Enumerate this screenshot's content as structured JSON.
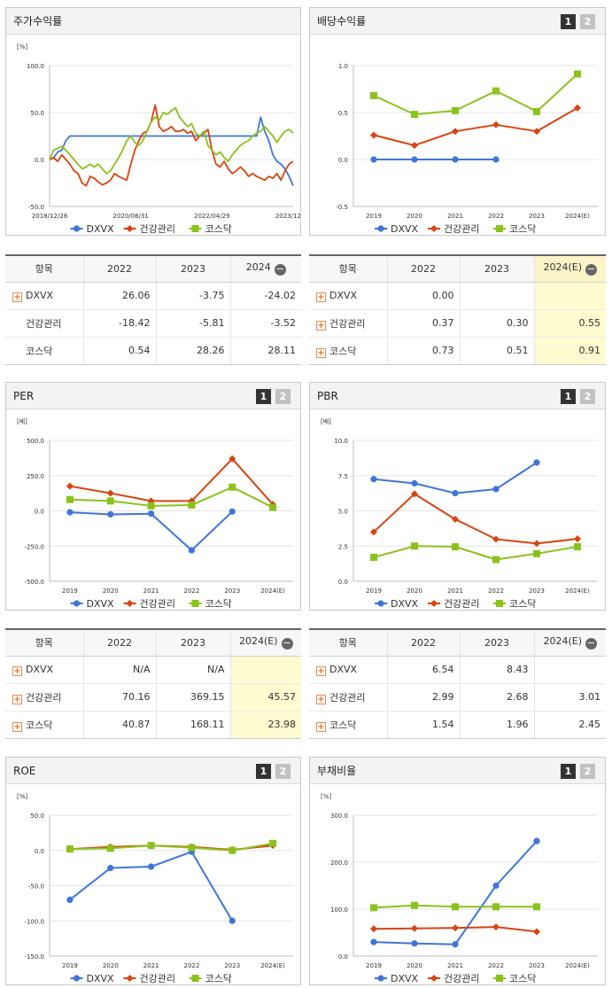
{
  "colors": {
    "DXVX": "#3f75d9",
    "건강관리": "#d9430f",
    "코스닥": "#8bc21b"
  },
  "charts": [
    {
      "id": "stock",
      "title": "주가수익률",
      "pages": [],
      "chart_data": {
        "type": "line",
        "unit": "[%]",
        "yticks": [
          "100.0",
          "50.0",
          "0.0",
          "-50.0"
        ],
        "ylim": [
          -50,
          100
        ],
        "xlim": [
          0,
          60
        ],
        "xticks": [
          {
            "x": 0,
            "label": "2018/12/28"
          },
          {
            "x": 20,
            "label": "2020/08/31"
          },
          {
            "x": 40,
            "label": "2022/04/29"
          },
          {
            "x": 60,
            "label": "2023/12/28"
          }
        ],
        "series": [
          {
            "name": "DXVX",
            "values": [
              0,
              2,
              8,
              10,
              20,
              25,
              25,
              25,
              25,
              25,
              25,
              25,
              25,
              25,
              25,
              25,
              25,
              25,
              25,
              25,
              25,
              25,
              25,
              25,
              25,
              25,
              25,
              25,
              25,
              25,
              25,
              25,
              25,
              25,
              25,
              25,
              25,
              25,
              25,
              25,
              25,
              25,
              25,
              25,
              25,
              25,
              25,
              25,
              25,
              25,
              25,
              25,
              45,
              30,
              20,
              5,
              -2,
              -5,
              -10,
              -18,
              -28
            ]
          },
          {
            "name": "건강관리",
            "values": [
              0,
              2,
              -2,
              5,
              0,
              -5,
              -12,
              -15,
              -25,
              -28,
              -18,
              -20,
              -24,
              -27,
              -25,
              -22,
              -15,
              -18,
              -20,
              -22,
              -5,
              10,
              20,
              28,
              30,
              40,
              58,
              35,
              30,
              32,
              35,
              30,
              30,
              32,
              28,
              30,
              20,
              25,
              28,
              32,
              10,
              -5,
              -8,
              -2,
              -10,
              -15,
              -12,
              -8,
              -12,
              -18,
              -15,
              -18,
              -20,
              -22,
              -18,
              -20,
              -15,
              -22,
              -12,
              -5,
              -2
            ]
          },
          {
            "name": "코스닥",
            "values": [
              0,
              10,
              12,
              14,
              10,
              5,
              0,
              -5,
              -10,
              -8,
              -5,
              -8,
              -5,
              -10,
              -15,
              -12,
              -5,
              2,
              10,
              20,
              25,
              18,
              15,
              20,
              30,
              40,
              45,
              42,
              50,
              48,
              52,
              55,
              45,
              40,
              35,
              38,
              28,
              25,
              30,
              15,
              10,
              5,
              8,
              2,
              -2,
              5,
              10,
              15,
              18,
              20,
              25,
              28,
              30,
              35,
              30,
              25,
              18,
              25,
              30,
              32,
              28
            ]
          }
        ],
        "legend": "bottom"
      }
    },
    {
      "id": "dividend",
      "title": "배당수익률",
      "pages": [
        "1",
        "2"
      ],
      "chart_data": {
        "type": "line",
        "unit": "",
        "yticks": [
          "1.0",
          "0.5",
          "0.0",
          "-0.5"
        ],
        "ylim": [
          -0.5,
          1.0
        ],
        "categories": [
          "2019",
          "2020",
          "2021",
          "2022",
          "2023",
          "2024(E)"
        ],
        "series": [
          {
            "name": "DXVX",
            "values": [
              0.0,
              0.0,
              0.0,
              0.0,
              null,
              null
            ]
          },
          {
            "name": "건강관리",
            "values": [
              0.26,
              0.15,
              0.3,
              0.37,
              0.3,
              0.55
            ]
          },
          {
            "name": "코스닥",
            "values": [
              0.68,
              0.48,
              0.52,
              0.73,
              0.51,
              0.91
            ]
          }
        ],
        "legend": "bottom"
      }
    },
    {
      "id": "per",
      "title": "PER",
      "pages": [
        "1",
        "2"
      ],
      "chart_data": {
        "type": "line",
        "unit": "[배]",
        "yticks": [
          "500.0",
          "250.0",
          "0.0",
          "-250.0",
          "-500.0"
        ],
        "ylim": [
          -500,
          500
        ],
        "categories": [
          "2019",
          "2020",
          "2021",
          "2022",
          "2023",
          "2024(E)"
        ],
        "series": [
          {
            "name": "DXVX",
            "values": [
              -10,
              -25,
              -20,
              -280,
              -5,
              null
            ]
          },
          {
            "name": "건강관리",
            "values": [
              175,
              125,
              70,
              70,
              369.15,
              45.57
            ]
          },
          {
            "name": "코스닥",
            "values": [
              80,
              70,
              35,
              40.87,
              168.11,
              23.98
            ]
          }
        ],
        "legend": "bottom"
      }
    },
    {
      "id": "pbr",
      "title": "PBR",
      "pages": [
        "1",
        "2"
      ],
      "chart_data": {
        "type": "line",
        "unit": "[배]",
        "yticks": [
          "10.0",
          "7.5",
          "5.0",
          "2.5",
          "0.0"
        ],
        "ylim": [
          0,
          10
        ],
        "categories": [
          "2019",
          "2020",
          "2021",
          "2022",
          "2023",
          "2024(E)"
        ],
        "series": [
          {
            "name": "DXVX",
            "values": [
              7.25,
              6.95,
              6.25,
              6.54,
              8.43,
              null
            ]
          },
          {
            "name": "건강관리",
            "values": [
              3.5,
              6.2,
              4.4,
              2.99,
              2.68,
              3.01
            ]
          },
          {
            "name": "코스닥",
            "values": [
              1.7,
              2.5,
              2.45,
              1.54,
              1.96,
              2.45
            ]
          }
        ],
        "legend": "bottom"
      }
    },
    {
      "id": "roe",
      "title": "ROE",
      "pages": [
        "1",
        "2"
      ],
      "chart_data": {
        "type": "line",
        "unit": "[%]",
        "yticks": [
          "50.0",
          "0.0",
          "-50.0",
          "-100.0",
          "-150.0"
        ],
        "ylim": [
          -150,
          50
        ],
        "categories": [
          "2019",
          "2020",
          "2021",
          "2022",
          "2023",
          "2024(E)"
        ],
        "series": [
          {
            "name": "DXVX",
            "values": [
              -70,
              -25,
              -23,
              -2,
              -100,
              null
            ]
          },
          {
            "name": "건강관리",
            "values": [
              2,
              5,
              7,
              5,
              1,
              7
            ]
          },
          {
            "name": "코스닥",
            "values": [
              2,
              3,
              7,
              4,
              0,
              10
            ]
          }
        ],
        "legend": "bottom"
      }
    },
    {
      "id": "debt",
      "title": "부채비율",
      "pages": [
        "1",
        "2"
      ],
      "chart_data": {
        "type": "line",
        "unit": "[%]",
        "yticks": [
          "300.0",
          "200.0",
          "100.0",
          "0.0"
        ],
        "ylim": [
          0,
          300
        ],
        "categories": [
          "2019",
          "2020",
          "2021",
          "2022",
          "2023",
          "2024(E)"
        ],
        "series": [
          {
            "name": "DXVX",
            "values": [
              30,
              27,
              25,
              150,
              245,
              null
            ]
          },
          {
            "name": "건강관리",
            "values": [
              58,
              59,
              60,
              62,
              52,
              null
            ]
          },
          {
            "name": "코스닥",
            "values": [
              103,
              108,
              105,
              105,
              105,
              null
            ]
          }
        ],
        "legend": "bottom"
      }
    }
  ],
  "tables": {
    "stock": {
      "headers": [
        "항목",
        "2022",
        "2023",
        "2024"
      ],
      "rows": [
        {
          "name": "DXVX",
          "plus": true,
          "values": [
            "26.06",
            "-3.75",
            "-24.02"
          ]
        },
        {
          "name": "건강관리",
          "plus": false,
          "values": [
            "-18.42",
            "-5.81",
            "-3.52"
          ]
        },
        {
          "name": "코스닥",
          "plus": false,
          "values": [
            "0.54",
            "28.26",
            "28.11"
          ]
        }
      ]
    },
    "dividend": {
      "headers": [
        "항목",
        "2022",
        "2023",
        "2024(E)"
      ],
      "rows": [
        {
          "name": "DXVX",
          "plus": true,
          "values": [
            "0.00",
            "",
            ""
          ]
        },
        {
          "name": "건강관리",
          "plus": true,
          "values": [
            "0.37",
            "0.30",
            "0.55"
          ]
        },
        {
          "name": "코스닥",
          "plus": true,
          "values": [
            "0.73",
            "0.51",
            "0.91"
          ]
        }
      ]
    },
    "per": {
      "headers": [
        "항목",
        "2022",
        "2023",
        "2024(E)"
      ],
      "rows": [
        {
          "name": "DXVX",
          "plus": true,
          "values": [
            "N/A",
            "N/A",
            ""
          ]
        },
        {
          "name": "건강관리",
          "plus": true,
          "values": [
            "70.16",
            "369.15",
            "45.57"
          ]
        },
        {
          "name": "코스닥",
          "plus": true,
          "values": [
            "40.87",
            "168.11",
            "23.98"
          ]
        }
      ]
    },
    "pbr": {
      "headers": [
        "항목",
        "2022",
        "2023",
        "2024(E)"
      ],
      "rows": [
        {
          "name": "DXVX",
          "plus": true,
          "values": [
            "6.54",
            "8.43",
            ""
          ]
        },
        {
          "name": "건강관리",
          "plus": true,
          "values": [
            "2.99",
            "2.68",
            "3.01"
          ]
        },
        {
          "name": "코스닥",
          "plus": true,
          "values": [
            "1.54",
            "1.96",
            "2.45"
          ]
        }
      ]
    }
  }
}
